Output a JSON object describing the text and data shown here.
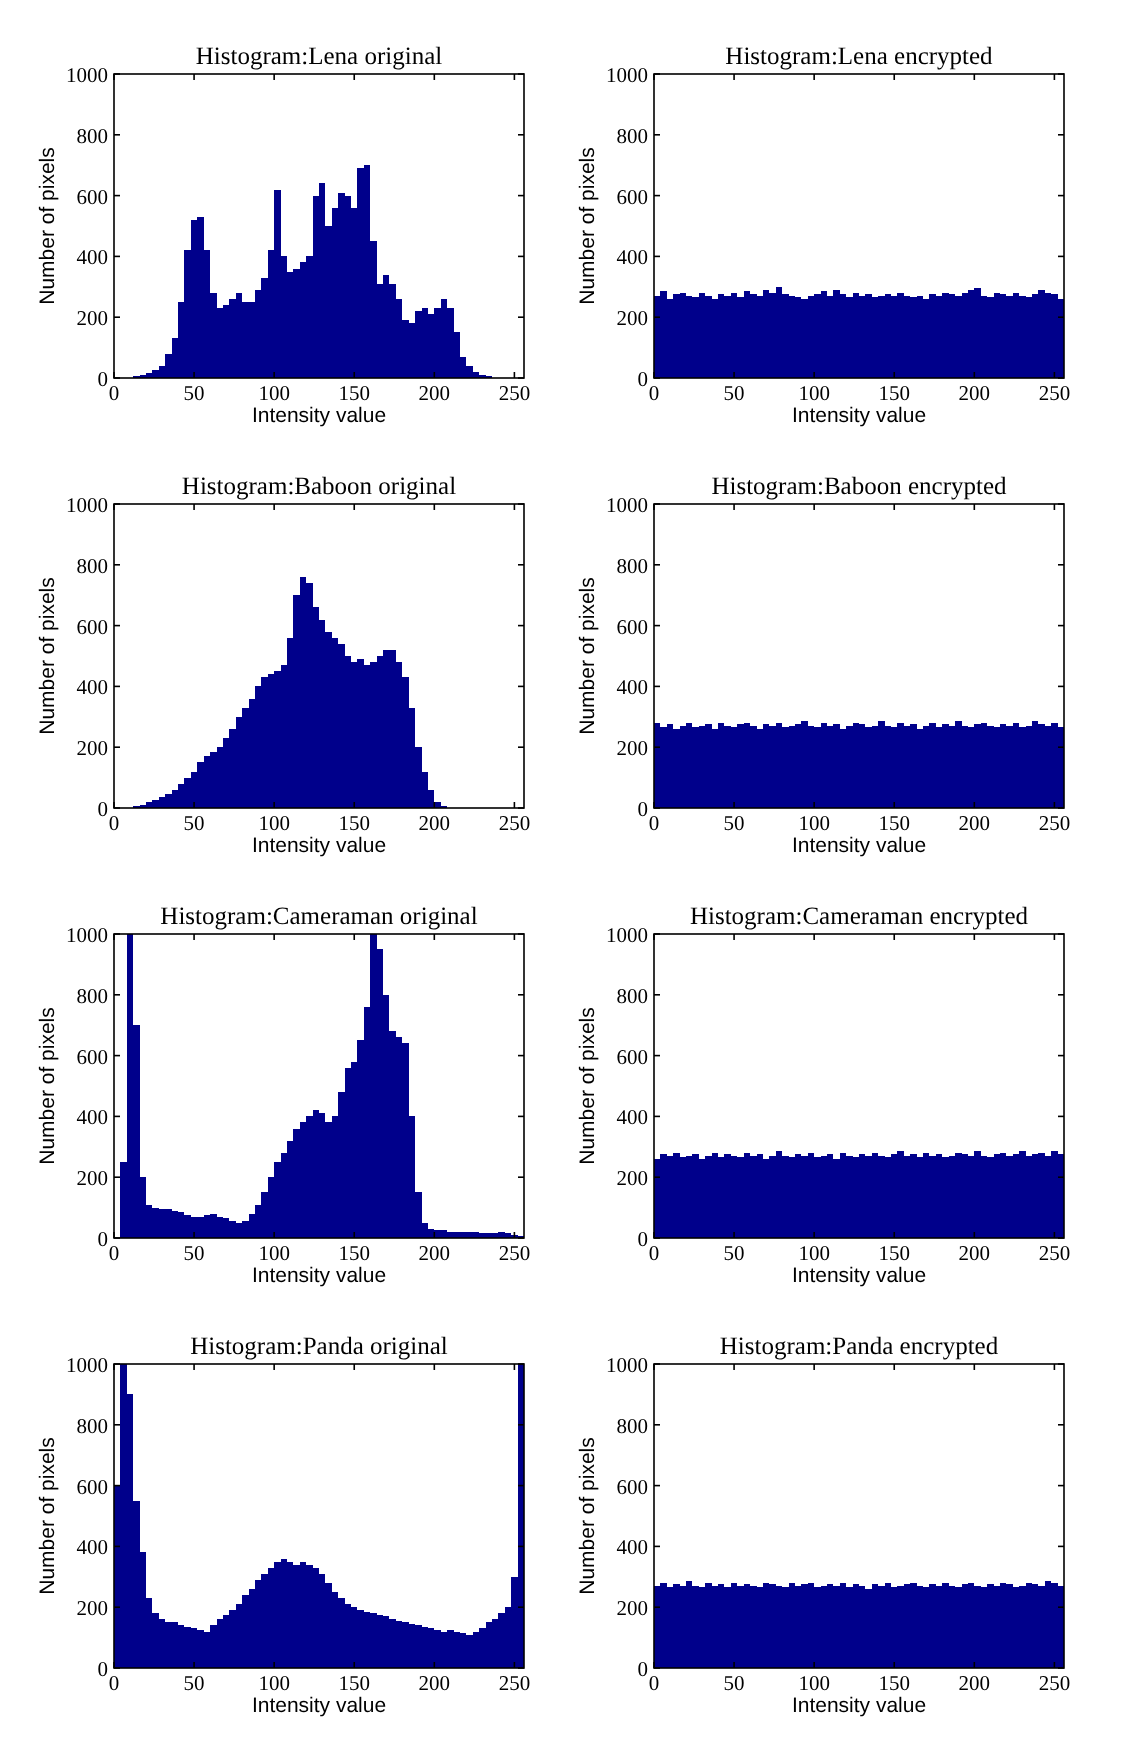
{
  "chart_data": [
    {
      "type": "histogram",
      "title": "Histogram:Lena original",
      "xlabel": "Intensity value",
      "ylabel": "Number of pixels",
      "color": "#00008b",
      "xlim": [
        0,
        256
      ],
      "ylim": [
        0,
        1000
      ],
      "xticks": [
        0,
        50,
        100,
        150,
        200,
        250
      ],
      "yticks": [
        0,
        200,
        400,
        600,
        800,
        1000
      ],
      "bins": [
        0,
        4,
        8,
        12,
        16,
        20,
        24,
        28,
        32,
        36,
        40,
        44,
        48,
        52,
        56,
        60,
        64,
        68,
        72,
        76,
        80,
        84,
        88,
        92,
        96,
        100,
        104,
        108,
        112,
        116,
        120,
        124,
        128,
        132,
        136,
        140,
        144,
        148,
        152,
        156,
        160,
        164,
        168,
        172,
        176,
        180,
        184,
        188,
        192,
        196,
        200,
        204,
        208,
        212,
        216,
        220,
        224,
        228,
        232,
        236,
        240,
        244,
        248,
        252,
        256
      ],
      "values": [
        0,
        0,
        0,
        5,
        10,
        15,
        25,
        40,
        80,
        130,
        250,
        420,
        520,
        530,
        420,
        280,
        230,
        240,
        260,
        280,
        250,
        250,
        290,
        330,
        420,
        620,
        400,
        350,
        360,
        380,
        400,
        600,
        640,
        500,
        560,
        610,
        600,
        560,
        690,
        700,
        450,
        310,
        340,
        310,
        260,
        190,
        180,
        220,
        230,
        210,
        230,
        260,
        230,
        150,
        70,
        40,
        20,
        10,
        5,
        0,
        0,
        0,
        0,
        0
      ]
    },
    {
      "type": "histogram",
      "title": "Histogram:Lena encrypted",
      "xlabel": "Intensity value",
      "ylabel": "Number of pixels",
      "color": "#00008b",
      "xlim": [
        0,
        256
      ],
      "ylim": [
        0,
        1000
      ],
      "xticks": [
        0,
        50,
        100,
        150,
        200,
        250
      ],
      "yticks": [
        0,
        200,
        400,
        600,
        800,
        1000
      ],
      "bins": [
        0,
        4,
        8,
        12,
        16,
        20,
        24,
        28,
        32,
        36,
        40,
        44,
        48,
        52,
        56,
        60,
        64,
        68,
        72,
        76,
        80,
        84,
        88,
        92,
        96,
        100,
        104,
        108,
        112,
        116,
        120,
        124,
        128,
        132,
        136,
        140,
        144,
        148,
        152,
        156,
        160,
        164,
        168,
        172,
        176,
        180,
        184,
        188,
        192,
        196,
        200,
        204,
        208,
        212,
        216,
        220,
        224,
        228,
        232,
        236,
        240,
        244,
        248,
        252,
        256
      ],
      "values": [
        270,
        285,
        260,
        275,
        280,
        270,
        265,
        280,
        270,
        260,
        275,
        270,
        280,
        265,
        285,
        275,
        270,
        290,
        280,
        300,
        275,
        270,
        265,
        260,
        270,
        275,
        285,
        270,
        290,
        275,
        265,
        280,
        270,
        275,
        265,
        270,
        275,
        270,
        280,
        270,
        265,
        270,
        260,
        275,
        270,
        280,
        275,
        270,
        280,
        290,
        295,
        270,
        265,
        280,
        275,
        270,
        280,
        270,
        265,
        275,
        290,
        280,
        275,
        260
      ]
    },
    {
      "type": "histogram",
      "title": "Histogram:Baboon original",
      "xlabel": "Intensity value",
      "ylabel": "Number of pixels",
      "color": "#00008b",
      "xlim": [
        0,
        256
      ],
      "ylim": [
        0,
        1000
      ],
      "xticks": [
        0,
        50,
        100,
        150,
        200,
        250
      ],
      "yticks": [
        0,
        200,
        400,
        600,
        800,
        1000
      ],
      "bins": [
        0,
        4,
        8,
        12,
        16,
        20,
        24,
        28,
        32,
        36,
        40,
        44,
        48,
        52,
        56,
        60,
        64,
        68,
        72,
        76,
        80,
        84,
        88,
        92,
        96,
        100,
        104,
        108,
        112,
        116,
        120,
        124,
        128,
        132,
        136,
        140,
        144,
        148,
        152,
        156,
        160,
        164,
        168,
        172,
        176,
        180,
        184,
        188,
        192,
        196,
        200,
        204,
        208,
        212,
        216,
        220,
        224,
        228,
        232,
        236,
        240,
        244,
        248,
        252,
        256
      ],
      "values": [
        0,
        0,
        0,
        5,
        10,
        20,
        25,
        35,
        45,
        60,
        80,
        100,
        120,
        150,
        170,
        185,
        200,
        230,
        260,
        300,
        330,
        360,
        400,
        430,
        440,
        450,
        470,
        560,
        700,
        760,
        740,
        660,
        620,
        580,
        560,
        540,
        500,
        480,
        490,
        470,
        480,
        500,
        520,
        520,
        480,
        430,
        330,
        200,
        120,
        60,
        20,
        5,
        0,
        0,
        0,
        0,
        0,
        0,
        0,
        0,
        0,
        0,
        0,
        0
      ]
    },
    {
      "type": "histogram",
      "title": "Histogram:Baboon encrypted",
      "xlabel": "Intensity value",
      "ylabel": "Number of pixels",
      "color": "#00008b",
      "xlim": [
        0,
        256
      ],
      "ylim": [
        0,
        1000
      ],
      "xticks": [
        0,
        50,
        100,
        150,
        200,
        250
      ],
      "yticks": [
        0,
        200,
        400,
        600,
        800,
        1000
      ],
      "bins": [
        0,
        4,
        8,
        12,
        16,
        20,
        24,
        28,
        32,
        36,
        40,
        44,
        48,
        52,
        56,
        60,
        64,
        68,
        72,
        76,
        80,
        84,
        88,
        92,
        96,
        100,
        104,
        108,
        112,
        116,
        120,
        124,
        128,
        132,
        136,
        140,
        144,
        148,
        152,
        156,
        160,
        164,
        168,
        172,
        176,
        180,
        184,
        188,
        192,
        196,
        200,
        204,
        208,
        212,
        216,
        220,
        224,
        228,
        232,
        236,
        240,
        244,
        248,
        252,
        256
      ],
      "values": [
        280,
        265,
        275,
        260,
        270,
        280,
        265,
        270,
        275,
        260,
        280,
        270,
        265,
        275,
        280,
        270,
        260,
        275,
        270,
        280,
        265,
        270,
        275,
        285,
        270,
        265,
        280,
        270,
        275,
        260,
        270,
        280,
        275,
        265,
        270,
        285,
        270,
        265,
        280,
        270,
        275,
        260,
        270,
        280,
        265,
        275,
        270,
        285,
        270,
        265,
        275,
        280,
        270,
        265,
        275,
        270,
        280,
        265,
        270,
        285,
        275,
        270,
        280,
        265
      ]
    },
    {
      "type": "histogram",
      "title": "Histogram:Cameraman original",
      "xlabel": "Intensity value",
      "ylabel": "Number of pixels",
      "color": "#00008b",
      "xlim": [
        0,
        256
      ],
      "ylim": [
        0,
        1000
      ],
      "xticks": [
        0,
        50,
        100,
        150,
        200,
        250
      ],
      "yticks": [
        0,
        200,
        400,
        600,
        800,
        1000
      ],
      "bins": [
        0,
        4,
        8,
        12,
        16,
        20,
        24,
        28,
        32,
        36,
        40,
        44,
        48,
        52,
        56,
        60,
        64,
        68,
        72,
        76,
        80,
        84,
        88,
        92,
        96,
        100,
        104,
        108,
        112,
        116,
        120,
        124,
        128,
        132,
        136,
        140,
        144,
        148,
        152,
        156,
        160,
        164,
        168,
        172,
        176,
        180,
        184,
        188,
        192,
        196,
        200,
        204,
        208,
        212,
        216,
        220,
        224,
        228,
        232,
        236,
        240,
        244,
        248,
        252,
        256
      ],
      "values": [
        0,
        250,
        1000,
        700,
        200,
        110,
        100,
        95,
        95,
        90,
        85,
        75,
        70,
        70,
        75,
        80,
        70,
        65,
        55,
        50,
        55,
        80,
        110,
        150,
        200,
        250,
        280,
        320,
        360,
        380,
        400,
        420,
        410,
        380,
        400,
        480,
        560,
        580,
        650,
        760,
        1000,
        950,
        800,
        680,
        660,
        640,
        400,
        150,
        50,
        30,
        25,
        25,
        20,
        20,
        20,
        20,
        20,
        18,
        15,
        15,
        20,
        15,
        10,
        5
      ]
    },
    {
      "type": "histogram",
      "title": "Histogram:Cameraman encrypted",
      "xlabel": "Intensity value",
      "ylabel": "Number of pixels",
      "color": "#00008b",
      "xlim": [
        0,
        256
      ],
      "ylim": [
        0,
        1000
      ],
      "xticks": [
        0,
        50,
        100,
        150,
        200,
        250
      ],
      "yticks": [
        0,
        200,
        400,
        600,
        800,
        1000
      ],
      "bins": [
        0,
        4,
        8,
        12,
        16,
        20,
        24,
        28,
        32,
        36,
        40,
        44,
        48,
        52,
        56,
        60,
        64,
        68,
        72,
        76,
        80,
        84,
        88,
        92,
        96,
        100,
        104,
        108,
        112,
        116,
        120,
        124,
        128,
        132,
        136,
        140,
        144,
        148,
        152,
        156,
        160,
        164,
        168,
        172,
        176,
        180,
        184,
        188,
        192,
        196,
        200,
        204,
        208,
        212,
        216,
        220,
        224,
        228,
        232,
        236,
        240,
        244,
        248,
        252,
        256
      ],
      "values": [
        260,
        275,
        270,
        280,
        265,
        270,
        275,
        260,
        270,
        280,
        265,
        275,
        270,
        265,
        280,
        270,
        275,
        260,
        270,
        285,
        270,
        265,
        275,
        270,
        280,
        265,
        270,
        275,
        260,
        280,
        270,
        265,
        275,
        270,
        280,
        270,
        265,
        275,
        285,
        270,
        275,
        265,
        280,
        270,
        275,
        265,
        270,
        280,
        275,
        270,
        285,
        270,
        265,
        275,
        280,
        270,
        275,
        285,
        270,
        275,
        280,
        270,
        285,
        275
      ]
    },
    {
      "type": "histogram",
      "title": "Histogram:Panda original",
      "xlabel": "Intensity value",
      "ylabel": "Number of pixels",
      "color": "#00008b",
      "xlim": [
        0,
        256
      ],
      "ylim": [
        0,
        1000
      ],
      "xticks": [
        0,
        50,
        100,
        150,
        200,
        250
      ],
      "yticks": [
        0,
        200,
        400,
        600,
        800,
        1000
      ],
      "bins": [
        0,
        4,
        8,
        12,
        16,
        20,
        24,
        28,
        32,
        36,
        40,
        44,
        48,
        52,
        56,
        60,
        64,
        68,
        72,
        76,
        80,
        84,
        88,
        92,
        96,
        100,
        104,
        108,
        112,
        116,
        120,
        124,
        128,
        132,
        136,
        140,
        144,
        148,
        152,
        156,
        160,
        164,
        168,
        172,
        176,
        180,
        184,
        188,
        192,
        196,
        200,
        204,
        208,
        212,
        216,
        220,
        224,
        228,
        232,
        236,
        240,
        244,
        248,
        252,
        256
      ],
      "values": [
        600,
        1000,
        900,
        550,
        380,
        230,
        180,
        160,
        150,
        150,
        140,
        135,
        130,
        125,
        120,
        140,
        160,
        175,
        190,
        210,
        240,
        260,
        290,
        310,
        330,
        350,
        360,
        350,
        340,
        350,
        340,
        330,
        310,
        280,
        250,
        230,
        210,
        200,
        190,
        185,
        180,
        175,
        170,
        160,
        155,
        150,
        145,
        140,
        135,
        130,
        125,
        120,
        125,
        120,
        115,
        110,
        120,
        130,
        150,
        160,
        180,
        200,
        300,
        1000
      ]
    },
    {
      "type": "histogram",
      "title": "Histogram:Panda encrypted",
      "xlabel": "Intensity value",
      "ylabel": "Number of pixels",
      "color": "#00008b",
      "xlim": [
        0,
        256
      ],
      "ylim": [
        0,
        1000
      ],
      "xticks": [
        0,
        50,
        100,
        150,
        200,
        250
      ],
      "yticks": [
        0,
        200,
        400,
        600,
        800,
        1000
      ],
      "bins": [
        0,
        4,
        8,
        12,
        16,
        20,
        24,
        28,
        32,
        36,
        40,
        44,
        48,
        52,
        56,
        60,
        64,
        68,
        72,
        76,
        80,
        84,
        88,
        92,
        96,
        100,
        104,
        108,
        112,
        116,
        120,
        124,
        128,
        132,
        136,
        140,
        144,
        148,
        152,
        156,
        160,
        164,
        168,
        172,
        176,
        180,
        184,
        188,
        192,
        196,
        200,
        204,
        208,
        212,
        216,
        220,
        224,
        228,
        232,
        236,
        240,
        244,
        248,
        252,
        256
      ],
      "values": [
        270,
        280,
        265,
        275,
        270,
        285,
        270,
        265,
        280,
        270,
        275,
        265,
        280,
        270,
        275,
        270,
        265,
        280,
        275,
        270,
        265,
        280,
        270,
        275,
        280,
        265,
        270,
        275,
        270,
        280,
        265,
        275,
        270,
        260,
        275,
        270,
        280,
        265,
        270,
        275,
        280,
        270,
        265,
        275,
        270,
        280,
        270,
        265,
        275,
        280,
        270,
        265,
        275,
        270,
        280,
        275,
        265,
        270,
        280,
        275,
        270,
        285,
        280,
        270
      ]
    }
  ]
}
